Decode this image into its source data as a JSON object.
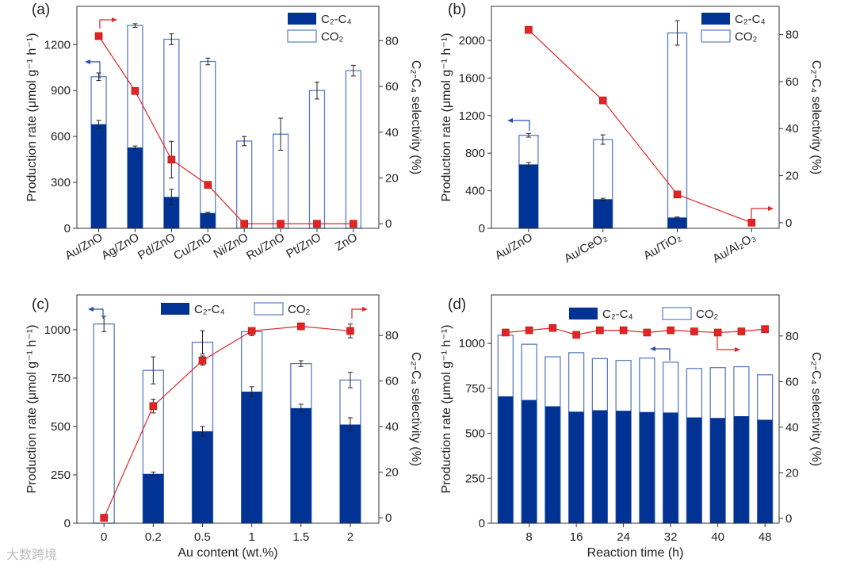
{
  "colors": {
    "c2c4": "#003393",
    "co2_edge": "#5a7dc2",
    "selectivity": "#e32424",
    "axis": "#333333",
    "left_arrow": "#2a4fa8"
  },
  "watermark": "大数跨境",
  "chart_data": [
    {
      "panel_label": "(a)",
      "type": "bar",
      "categories": [
        "Au/ZnO",
        "Ag/ZnO",
        "Pd/ZnO",
        "Cu/ZnO",
        "Ni/ZnO",
        "Ru/ZnO",
        "Pt/ZnO",
        "ZnO"
      ],
      "xlabel": "",
      "ylabel": "Production rate (μmol g⁻¹ h⁻¹)",
      "ylabel_right": "C₂-C₄ selectivity (%)",
      "xlim": [
        -0.6,
        7.7
      ],
      "ylim": [
        0,
        1450
      ],
      "ylim_right": [
        -2,
        95
      ],
      "yticks": [
        0,
        300,
        600,
        900,
        1200
      ],
      "yticks_right": [
        0,
        20,
        40,
        60,
        80
      ],
      "legend": [
        "C₂-C₄",
        "CO₂"
      ],
      "legend_placement": "top-right",
      "series": [
        {
          "name": "C₂-C₄",
          "type": "stacked-bar",
          "values": [
            680,
            528,
            205,
            100,
            0,
            0,
            0,
            0
          ],
          "errors": [
            25,
            10,
            50,
            5,
            0,
            0,
            0,
            0
          ]
        },
        {
          "name": "CO₂ (total)",
          "type": "stacked-bar",
          "values": [
            990,
            1325,
            1235,
            1090,
            570,
            615,
            900,
            1030
          ],
          "errors": [
            25,
            12,
            35,
            22,
            30,
            105,
            55,
            35
          ]
        },
        {
          "name": "C₂-C₄ selectivity",
          "type": "line",
          "axis": "right",
          "values": [
            82,
            58,
            28,
            17,
            0,
            0,
            0,
            0
          ],
          "errors": [
            1,
            1,
            8,
            1,
            0,
            0,
            1,
            0
          ]
        }
      ]
    },
    {
      "panel_label": "(b)",
      "type": "bar",
      "categories": [
        "Au/ZnO",
        "Au/CeO₂",
        "Au/TiO₂",
        "Au/Al₂O₃"
      ],
      "xlabel": "",
      "ylabel": "Production rate (μmol g⁻¹ h⁻¹)",
      "ylabel_right": "C₂-C₄ selectivity (%)",
      "xlim": [
        -0.5,
        3.37
      ],
      "ylim": [
        0,
        2363
      ],
      "ylim_right": [
        -2.4,
        92
      ],
      "yticks": [
        0,
        400,
        800,
        1200,
        1600,
        2000
      ],
      "yticks_right": [
        0,
        20,
        40,
        60,
        80
      ],
      "legend": [
        "C₂-C₄",
        "CO₂"
      ],
      "legend_placement": "top-right",
      "series": [
        {
          "name": "C₂-C₄",
          "type": "stacked-bar",
          "values": [
            680,
            310,
            115,
            0
          ],
          "errors": [
            20,
            10,
            5,
            0
          ]
        },
        {
          "name": "CO₂ (total)",
          "type": "stacked-bar",
          "values": [
            990,
            945,
            2080,
            0
          ],
          "errors": [
            20,
            50,
            130,
            0
          ]
        },
        {
          "name": "C₂-C₄ selectivity",
          "type": "line",
          "axis": "right",
          "values": [
            82,
            52,
            12,
            0
          ],
          "errors": [
            1,
            1,
            1,
            0
          ]
        }
      ]
    },
    {
      "panel_label": "(c)",
      "type": "bar",
      "categories": [
        "0",
        "0.2",
        "0.5",
        "1",
        "1.5",
        "2"
      ],
      "xlabel": "Au content (wt.%)",
      "ylabel": "Production rate (μmol g⁻¹ h⁻¹)",
      "ylabel_right": "C₂-C₄ selectivity (%)",
      "xlim": [
        -0.55,
        5.58
      ],
      "ylim": [
        0,
        1180
      ],
      "ylim_right": [
        -2.4,
        97.8
      ],
      "yticks": [
        0,
        250,
        500,
        750,
        1000
      ],
      "yticks_right": [
        0,
        20,
        40,
        60,
        80
      ],
      "legend": [
        "C₂-C₄",
        "CO₂"
      ],
      "legend_placement": "top",
      "series": [
        {
          "name": "C₂-C₄",
          "type": "stacked-bar",
          "values": [
            0,
            255,
            475,
            680,
            595,
            510
          ],
          "errors": [
            0,
            10,
            25,
            25,
            20,
            35
          ]
        },
        {
          "name": "CO₂ (total)",
          "type": "stacked-bar",
          "values": [
            1030,
            790,
            935,
            990,
            825,
            740
          ],
          "errors": [
            40,
            70,
            60,
            20,
            15,
            40
          ]
        },
        {
          "name": "C₂-C₄ selectivity",
          "type": "line",
          "axis": "right",
          "values": [
            0,
            49,
            69,
            82,
            84,
            82
          ],
          "errors": [
            0,
            3,
            2,
            1,
            1,
            3
          ]
        }
      ]
    },
    {
      "panel_label": "(d)",
      "type": "bar",
      "x": [
        4,
        8,
        12,
        16,
        20,
        24,
        28,
        32,
        36,
        40,
        44,
        48
      ],
      "xticks": [
        8,
        16,
        24,
        32,
        40,
        48
      ],
      "xlabel": "Reaction time (h)",
      "ylabel": "Production rate (μmol g⁻¹ h⁻¹)",
      "ylabel_right": "C₂-C₄ selectivity (%)",
      "xlim": [
        1.6,
        50.4
      ],
      "ylim": [
        0,
        1269
      ],
      "ylim_right": [
        -2.1,
        98
      ],
      "yticks": [
        0,
        250,
        500,
        750,
        1000
      ],
      "yticks_right": [
        0,
        20,
        40,
        60,
        80
      ],
      "legend": [
        "C₂-C₄",
        "CO₂"
      ],
      "legend_placement": "top",
      "series": [
        {
          "name": "C₂-C₄",
          "type": "stacked-bar",
          "values": [
            705,
            685,
            650,
            620,
            628,
            625,
            618,
            615,
            588,
            585,
            595,
            575
          ]
        },
        {
          "name": "CO₂ (total)",
          "type": "stacked-bar",
          "values": [
            1045,
            995,
            925,
            948,
            915,
            905,
            918,
            895,
            860,
            865,
            870,
            825
          ]
        },
        {
          "name": "C₂-C₄ selectivity",
          "type": "line",
          "axis": "right",
          "values": [
            81.5,
            82.5,
            83.5,
            80.5,
            82.5,
            82.5,
            81.5,
            82.5,
            82,
            81.5,
            82,
            83
          ]
        }
      ]
    }
  ]
}
